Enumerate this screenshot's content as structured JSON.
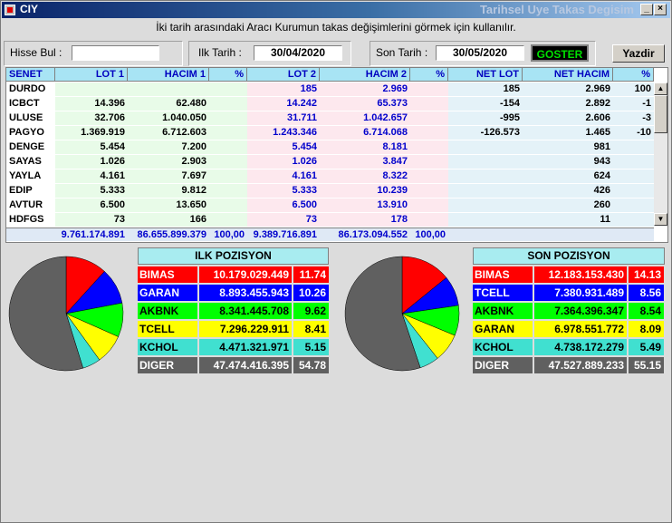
{
  "window": {
    "title": "CIY",
    "subtitle": "Tarihsel Uye Takas Degisim"
  },
  "hint": "İki tarih arasındaki  Aracı Kurumun takas değişimlerini görmek için kullanılır.",
  "controls": {
    "hisse_label": "Hisse Bul :",
    "hisse_value": "",
    "ilk_label": "Ilk Tarih :",
    "ilk_value": "30/04/2020",
    "son_label": "Son Tarih :",
    "son_value": "30/05/2020",
    "goster_label": "GOSTER",
    "yazdir_label": "Yazdir"
  },
  "table": {
    "columns": [
      "SENET",
      "LOT 1",
      "HACIM 1",
      "%",
      "LOT 2",
      "HACIM 2",
      "%",
      "NET LOT",
      "NET HACIM",
      "%"
    ],
    "rows": [
      [
        "DURDO",
        "",
        "",
        "",
        "185",
        "2.969",
        "",
        "185",
        "2.969",
        "100"
      ],
      [
        "ICBCT",
        "14.396",
        "62.480",
        "",
        "14.242",
        "65.373",
        "",
        "-154",
        "2.892",
        "-1"
      ],
      [
        "ULUSE",
        "32.706",
        "1.040.050",
        "",
        "31.711",
        "1.042.657",
        "",
        "-995",
        "2.606",
        "-3"
      ],
      [
        "PAGYO",
        "1.369.919",
        "6.712.603",
        "",
        "1.243.346",
        "6.714.068",
        "",
        "-126.573",
        "1.465",
        "-10"
      ],
      [
        "DENGE",
        "5.454",
        "7.200",
        "",
        "5.454",
        "8.181",
        "",
        "",
        "981",
        ""
      ],
      [
        "SAYAS",
        "1.026",
        "2.903",
        "",
        "1.026",
        "3.847",
        "",
        "",
        "943",
        ""
      ],
      [
        "YAYLA",
        "4.161",
        "7.697",
        "",
        "4.161",
        "8.322",
        "",
        "",
        "624",
        ""
      ],
      [
        "EDIP",
        "5.333",
        "9.812",
        "",
        "5.333",
        "10.239",
        "",
        "",
        "426",
        ""
      ],
      [
        "AVTUR",
        "6.500",
        "13.650",
        "",
        "6.500",
        "13.910",
        "",
        "",
        "260",
        ""
      ],
      [
        "HDFGS",
        "73",
        "166",
        "",
        "73",
        "178",
        "",
        "",
        "11",
        ""
      ]
    ],
    "totals": [
      "",
      "9.761.174.891",
      "86.655.899.379",
      "100,00",
      "9.389.716.891",
      "86.173.094.552",
      "100,00",
      "",
      "",
      ""
    ]
  },
  "ilk_pozisyon": {
    "title": "ILK POZISYON",
    "rows": [
      {
        "name": "BIMAS",
        "value": "10.179.029.449",
        "pct": "11.74",
        "pct_num": 11.74,
        "color": "#ff0000",
        "text": "#ffffff"
      },
      {
        "name": "GARAN",
        "value": "8.893.455.943",
        "pct": "10.26",
        "pct_num": 10.26,
        "color": "#0000ff",
        "text": "#ffffff"
      },
      {
        "name": "AKBNK",
        "value": "8.341.445.708",
        "pct": "9.62",
        "pct_num": 9.62,
        "color": "#00ff00",
        "text": "#000000"
      },
      {
        "name": "TCELL",
        "value": "7.296.229.911",
        "pct": "8.41",
        "pct_num": 8.41,
        "color": "#ffff00",
        "text": "#000000"
      },
      {
        "name": "KCHOL",
        "value": "4.471.321.971",
        "pct": "5.15",
        "pct_num": 5.15,
        "color": "#40e0d0",
        "text": "#000000"
      },
      {
        "name": "DIGER",
        "value": "47.474.416.395",
        "pct": "54.78",
        "pct_num": 54.78,
        "color": "#606060",
        "text": "#ffffff"
      }
    ]
  },
  "son_pozisyon": {
    "title": "SON POZISYON",
    "rows": [
      {
        "name": "BIMAS",
        "value": "12.183.153.430",
        "pct": "14.13",
        "pct_num": 14.13,
        "color": "#ff0000",
        "text": "#ffffff"
      },
      {
        "name": "TCELL",
        "value": "7.380.931.489",
        "pct": "8.56",
        "pct_num": 8.56,
        "color": "#0000ff",
        "text": "#ffffff"
      },
      {
        "name": "AKBNK",
        "value": "7.364.396.347",
        "pct": "8.54",
        "pct_num": 8.54,
        "color": "#00ff00",
        "text": "#000000"
      },
      {
        "name": "GARAN",
        "value": "6.978.551.772",
        "pct": "8.09",
        "pct_num": 8.09,
        "color": "#ffff00",
        "text": "#000000"
      },
      {
        "name": "KCHOL",
        "value": "4.738.172.279",
        "pct": "5.49",
        "pct_num": 5.49,
        "color": "#40e0d0",
        "text": "#000000"
      },
      {
        "name": "DIGER",
        "value": "47.527.889.233",
        "pct": "55.15",
        "pct_num": 55.15,
        "color": "#606060",
        "text": "#ffffff"
      }
    ]
  }
}
